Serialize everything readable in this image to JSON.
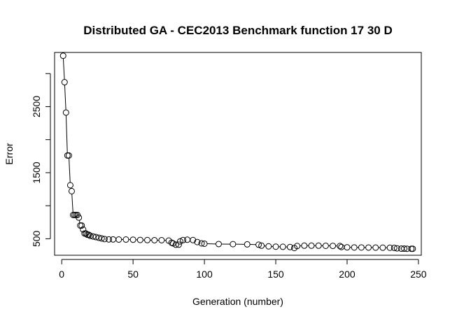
{
  "chart_data": {
    "type": "line",
    "title": "Distributed GA - CEC2013 Benchmark function  17 30 D",
    "xlabel": "Generation (number)",
    "ylabel": "Error",
    "xlim": [
      -5,
      252
    ],
    "ylim": [
      250,
      3320
    ],
    "x_ticks": [
      0,
      50,
      100,
      150,
      200,
      250
    ],
    "x_tick_labels": [
      "0",
      "50",
      "100",
      "150",
      "200",
      "250"
    ],
    "y_ticks": [
      500,
      1000,
      1500,
      2000,
      2500,
      3000
    ],
    "y_tick_labels": [
      "500",
      "",
      "1500",
      "",
      "2500",
      ""
    ],
    "line_color": "#000000",
    "marker": "open-circle",
    "series": [
      {
        "values": [
          [
            1,
            3270
          ],
          [
            2,
            2870
          ],
          [
            3,
            2410
          ],
          [
            4,
            1760
          ],
          [
            5,
            1760
          ],
          [
            6,
            1310
          ],
          [
            7,
            1220
          ],
          [
            8,
            860
          ],
          [
            9,
            860
          ],
          [
            10,
            860
          ],
          [
            11,
            860
          ],
          [
            12,
            820
          ],
          [
            13,
            700
          ],
          [
            14,
            700
          ],
          [
            15,
            640
          ],
          [
            16,
            580
          ],
          [
            17,
            580
          ],
          [
            18,
            560
          ],
          [
            19,
            560
          ],
          [
            20,
            545
          ],
          [
            22,
            535
          ],
          [
            24,
            525
          ],
          [
            26,
            515
          ],
          [
            28,
            505
          ],
          [
            30,
            495
          ],
          [
            33,
            490
          ],
          [
            36,
            490
          ],
          [
            40,
            488
          ],
          [
            45,
            488
          ],
          [
            50,
            486
          ],
          [
            55,
            482
          ],
          [
            60,
            480
          ],
          [
            65,
            478
          ],
          [
            70,
            478
          ],
          [
            75,
            472
          ],
          [
            77,
            440
          ],
          [
            78,
            430
          ],
          [
            80,
            410
          ],
          [
            82,
            410
          ],
          [
            83,
            460
          ],
          [
            85,
            480
          ],
          [
            88,
            485
          ],
          [
            92,
            480
          ],
          [
            95,
            450
          ],
          [
            98,
            430
          ],
          [
            100,
            425
          ],
          [
            110,
            420
          ],
          [
            120,
            418
          ],
          [
            130,
            415
          ],
          [
            138,
            410
          ],
          [
            140,
            395
          ],
          [
            145,
            385
          ],
          [
            150,
            380
          ],
          [
            155,
            378
          ],
          [
            160,
            375
          ],
          [
            163,
            360
          ],
          [
            165,
            390
          ],
          [
            170,
            395
          ],
          [
            175,
            395
          ],
          [
            180,
            395
          ],
          [
            185,
            393
          ],
          [
            190,
            392
          ],
          [
            195,
            390
          ],
          [
            196,
            375
          ],
          [
            200,
            370
          ],
          [
            205,
            368
          ],
          [
            210,
            368
          ],
          [
            215,
            367
          ],
          [
            220,
            366
          ],
          [
            225,
            365
          ],
          [
            230,
            364
          ],
          [
            233,
            362
          ],
          [
            235,
            355
          ],
          [
            238,
            350
          ],
          [
            240,
            350
          ],
          [
            242,
            348
          ],
          [
            245,
            348
          ],
          [
            246,
            348
          ]
        ]
      }
    ]
  }
}
